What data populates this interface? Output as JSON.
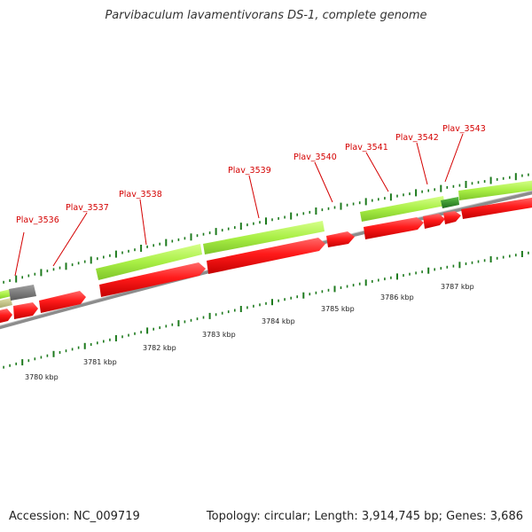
{
  "title": "Parvibaculum lavamentivorans DS-1, complete genome",
  "accession": "Accession: NC_009719",
  "summary": "Topology: circular; Length: 3,914,745 bp; Genes: 3,686",
  "genes": [
    {
      "id": "Plav_3536",
      "label": "Plav_3536"
    },
    {
      "id": "Plav_3537",
      "label": "Plav_3537"
    },
    {
      "id": "Plav_3538",
      "label": "Plav_3538"
    },
    {
      "id": "Plav_3539",
      "label": "Plav_3539"
    },
    {
      "id": "Plav_3540",
      "label": "Plav_3540"
    },
    {
      "id": "Plav_3541",
      "label": "Plav_3541"
    },
    {
      "id": "Plav_3542",
      "label": "Plav_3542"
    },
    {
      "id": "Plav_3543",
      "label": "Plav_3543"
    }
  ],
  "scale": [
    {
      "label": "3780 kbp"
    },
    {
      "label": "3781 kbp"
    },
    {
      "label": "3782 kbp"
    },
    {
      "label": "3783 kbp"
    },
    {
      "label": "3784 kbp"
    },
    {
      "label": "3785 kbp"
    },
    {
      "label": "3786 kbp"
    },
    {
      "label": "3787 kbp"
    }
  ],
  "colors": {
    "cds": "#ff1a1a",
    "gene_bar": "#aaf044",
    "gene_bar_dark": "#2b8a2b",
    "other_bar": "#777777",
    "tick": "#1d7a1d",
    "backbone": "#8c8c8c",
    "label": "#d40000"
  }
}
